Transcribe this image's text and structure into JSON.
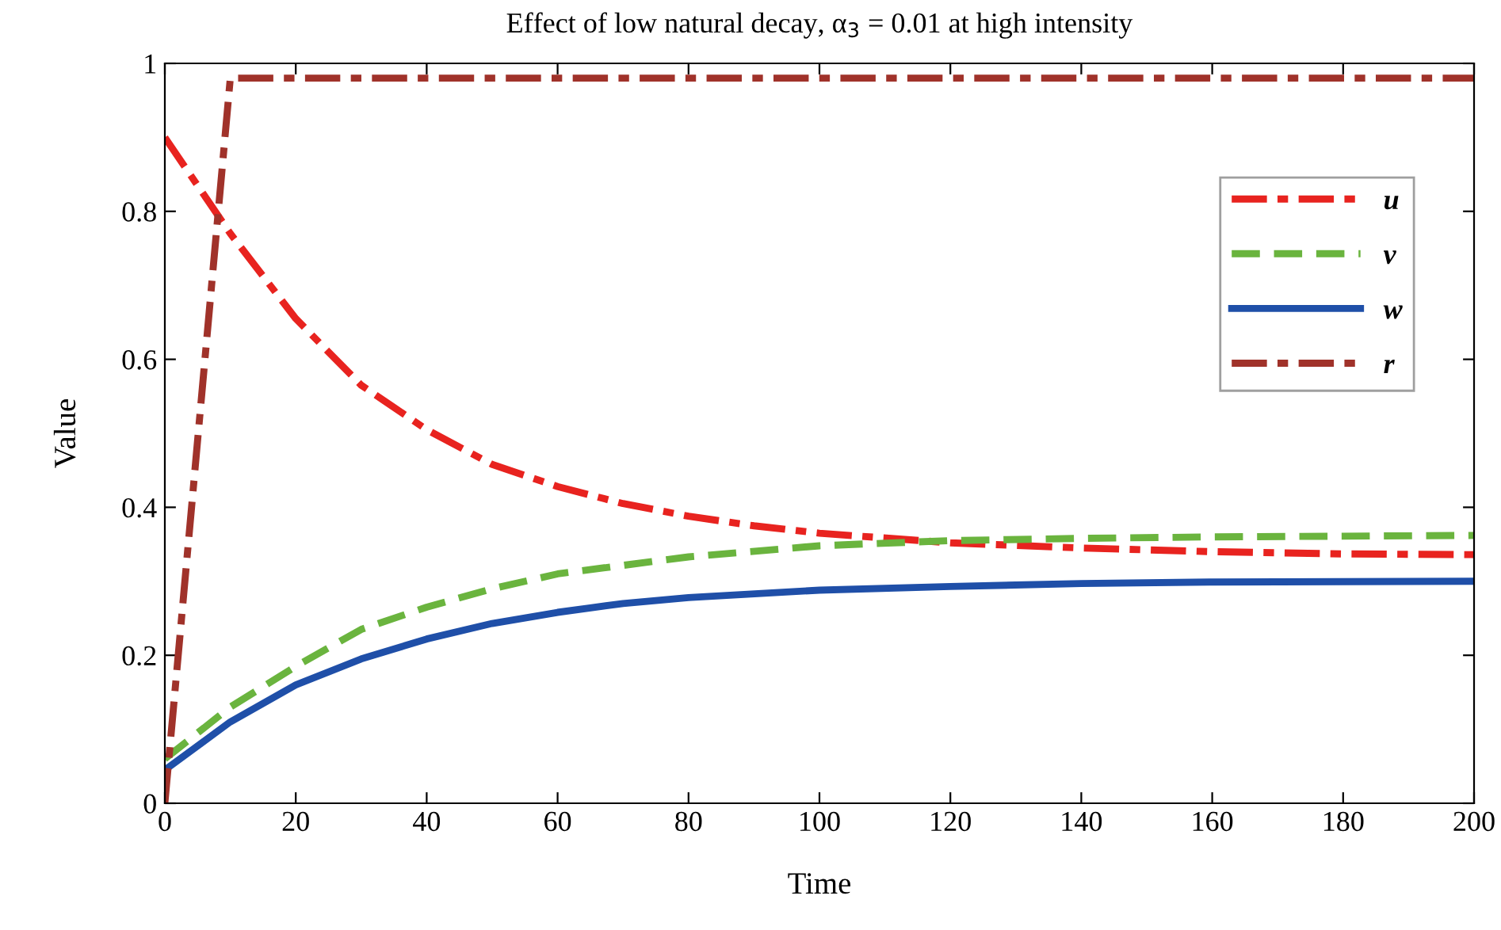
{
  "chart_data": {
    "type": "line",
    "title": "Effect of low natural decay, α$_{3}$ = 0.01 at high intensity",
    "xlabel": "Time",
    "ylabel": "Value",
    "xlim": [
      0,
      200
    ],
    "ylim": [
      0,
      1
    ],
    "xticks": [
      0,
      20,
      40,
      60,
      80,
      100,
      120,
      140,
      160,
      180,
      200
    ],
    "yticks": [
      0,
      0.2,
      0.4,
      0.6,
      0.8,
      1
    ],
    "grid": false,
    "legend": "top right",
    "series": [
      {
        "name": "u",
        "color": "#e8231f",
        "line_style": "dashdot",
        "x": [
          0,
          10,
          20,
          30,
          40,
          50,
          60,
          70,
          80,
          90,
          100,
          120,
          140,
          160,
          180,
          200
        ],
        "values": [
          0.9,
          0.77,
          0.655,
          0.565,
          0.505,
          0.458,
          0.428,
          0.405,
          0.388,
          0.375,
          0.365,
          0.352,
          0.345,
          0.34,
          0.337,
          0.336
        ]
      },
      {
        "name": "v",
        "color": "#6ab43e",
        "line_style": "dashed",
        "x": [
          0,
          10,
          20,
          30,
          40,
          50,
          60,
          80,
          100,
          120,
          140,
          160,
          200
        ],
        "values": [
          0.06,
          0.13,
          0.185,
          0.235,
          0.265,
          0.29,
          0.31,
          0.333,
          0.348,
          0.355,
          0.358,
          0.36,
          0.362
        ]
      },
      {
        "name": "w",
        "color": "#1f4fa8",
        "line_style": "solid",
        "x": [
          0,
          10,
          20,
          30,
          40,
          50,
          60,
          70,
          80,
          100,
          120,
          140,
          160,
          200
        ],
        "values": [
          0.045,
          0.11,
          0.16,
          0.195,
          0.222,
          0.243,
          0.258,
          0.27,
          0.278,
          0.288,
          0.293,
          0.297,
          0.299,
          0.3
        ]
      },
      {
        "name": "r",
        "color": "#a0322a",
        "line_style": "dashdot",
        "x": [
          0,
          10,
          200
        ],
        "values": [
          0,
          0.98,
          0.98
        ]
      }
    ]
  }
}
